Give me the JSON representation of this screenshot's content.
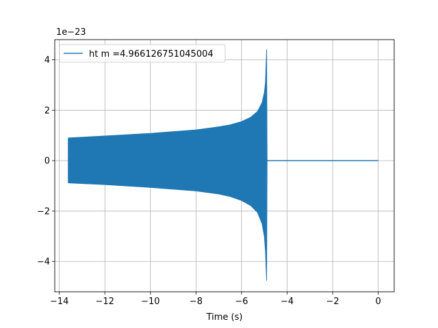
{
  "chart_data": {
    "type": "line",
    "title": "",
    "xlabel": "Time (s)",
    "ylabel": "",
    "y_offset_label": "1e−23",
    "xlim": [
      -14.2,
      0.7
    ],
    "ylim": [
      -5.2,
      4.8
    ],
    "x_ticks": [
      -14,
      -12,
      -10,
      -8,
      -6,
      -4,
      -2,
      0
    ],
    "x_tick_labels": [
      "−14",
      "−12",
      "−10",
      "−8",
      "−6",
      "−4",
      "−2",
      "0"
    ],
    "y_ticks": [
      -4,
      -2,
      0,
      2,
      4
    ],
    "y_tick_labels": [
      "−4",
      "−2",
      "0",
      "2",
      "4"
    ],
    "grid": true,
    "legend_position": "top-left",
    "series": [
      {
        "name": "ht m =4.966126751045004",
        "color": "#1f77b4",
        "envelope_upper": {
          "x": [
            -13.6,
            -12,
            -10,
            -8,
            -7,
            -6.5,
            -6,
            -5.6,
            -5.3,
            -5.1,
            -5.0,
            -4.95,
            -4.9,
            -4.88
          ],
          "y": [
            0.9,
            0.98,
            1.08,
            1.22,
            1.34,
            1.42,
            1.55,
            1.72,
            1.95,
            2.3,
            2.7,
            3.1,
            4.4,
            0.0
          ]
        },
        "envelope_lower": {
          "x": [
            -13.6,
            -12,
            -10,
            -8,
            -7,
            -6.5,
            -6,
            -5.6,
            -5.3,
            -5.1,
            -5.0,
            -4.95,
            -4.9,
            -4.88
          ],
          "y": [
            -0.88,
            -0.95,
            -1.06,
            -1.2,
            -1.32,
            -1.42,
            -1.58,
            -1.78,
            -2.05,
            -2.5,
            -3.0,
            -3.6,
            -4.75,
            0.0
          ]
        },
        "tail": {
          "x": [
            -4.88,
            0
          ],
          "y": [
            0,
            0
          ]
        }
      }
    ]
  }
}
